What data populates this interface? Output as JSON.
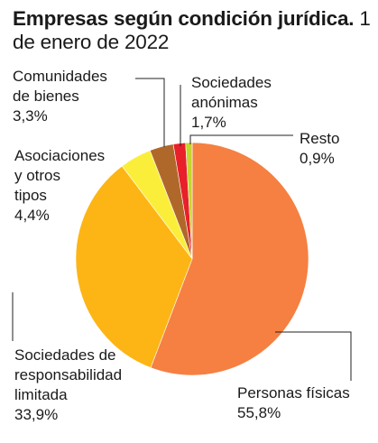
{
  "chart_data": {
    "type": "pie",
    "title": "Empresas según condición jurídica.",
    "subtitle": "1 de enero de 2022",
    "slices": [
      {
        "label": "Personas físicas",
        "value": 55.8,
        "display": "55,8%",
        "color": "#F58041"
      },
      {
        "label": "Sociedades de\nresponsabilidad\nlimitada",
        "value": 33.9,
        "display": "33,9%",
        "color": "#FDB515"
      },
      {
        "label": "Asociaciones\ny otros\ntipos",
        "value": 4.4,
        "display": "4,4%",
        "color": "#FBEE3A"
      },
      {
        "label": "Comunidades\nde bienes",
        "value": 3.3,
        "display": "3,3%",
        "color": "#B0682A"
      },
      {
        "label": "Sociedades\nanónimas",
        "value": 1.7,
        "display": "1,7%",
        "color": "#E8202A"
      },
      {
        "label": "Resto",
        "value": 0.9,
        "display": "0,9%",
        "color": "#C4D52C"
      }
    ]
  }
}
